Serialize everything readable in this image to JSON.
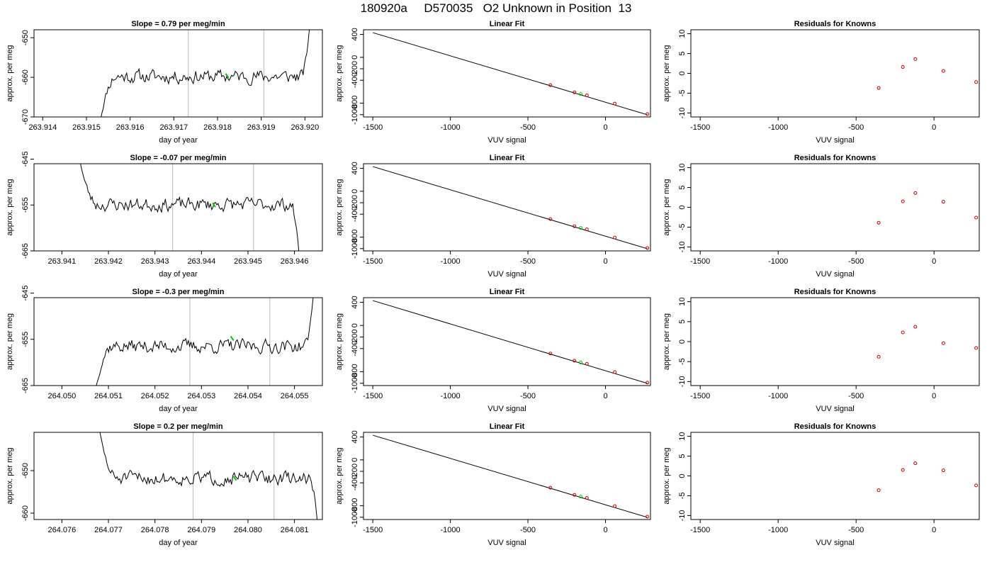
{
  "page": {
    "title": "180920a     D570035   O2 Unknown in Position  13"
  },
  "colors": {
    "axis": "#000000",
    "line": "#000000",
    "marker_unknown": "#00cc00",
    "marker_known": "#cc0000",
    "vline": "#bbbbbb"
  },
  "chart_data": [
    {
      "id": "r1-time",
      "type": "line",
      "title": "Slope =  0.79  per meg/min",
      "xlabel": "day of year",
      "ylabel": "approx. per meg",
      "xlim": [
        263.9138,
        263.9204
      ],
      "ylim": [
        -670,
        -648
      ],
      "xticks": [
        "263.914",
        "263.915",
        "263.916",
        "263.917",
        "263.918",
        "263.919",
        "263.920"
      ],
      "yticks": [
        "-650",
        "-660",
        "-670"
      ],
      "vlines": [
        263.91733,
        263.91906
      ],
      "trace_start": 263.9153,
      "trace_end": 263.9201,
      "level": -659.8,
      "start_value": -672,
      "end_value": -648,
      "seed": 11,
      "unknown_marker": {
        "x": 263.91822,
        "y": -659.6
      }
    },
    {
      "id": "r1-fit",
      "type": "line",
      "title": "Linear Fit",
      "xlabel": "VUV signal",
      "ylabel": "approx. per meg",
      "xlim": [
        -1560,
        290
      ],
      "ylim": [
        -1040,
        480
      ],
      "xticks": [
        "-1500",
        "-1000",
        "-500",
        "0"
      ],
      "yticks": [
        "-1000",
        "-800",
        "-400",
        "-200",
        "0",
        "400"
      ],
      "fit_line": {
        "x": [
          -1500,
          270
        ],
        "y": [
          430,
          -1002
        ]
      },
      "knowns": {
        "x": [
          -355,
          -200,
          -120,
          60,
          270
        ],
        "y": [
          -485,
          -610,
          -665,
          -807,
          -990
        ]
      },
      "unknown": {
        "x": [
          -160
        ],
        "y": [
          -640
        ]
      }
    },
    {
      "id": "r1-resid",
      "type": "scatter",
      "title": "Residuals for Knowns",
      "xlabel": "VUV signal",
      "ylabel": "approx. per meg",
      "xlim": [
        -1560,
        290
      ],
      "ylim": [
        -11,
        11
      ],
      "xticks": [
        "-1500",
        "-1000",
        "-500",
        "0"
      ],
      "yticks": [
        "-10",
        "-5",
        "0",
        "5",
        "10"
      ],
      "x": [
        -355,
        -200,
        -120,
        60,
        270
      ],
      "y": [
        -3.7,
        1.6,
        3.6,
        0.6,
        -2.2
      ]
    },
    {
      "id": "r2-time",
      "type": "line",
      "title": "Slope =  -0.07  per meg/min",
      "xlabel": "day of year",
      "ylabel": "approx. per meg",
      "xlim": [
        263.9404,
        263.9466
      ],
      "ylim": [
        -665,
        -646
      ],
      "xticks": [
        "263.941",
        "263.942",
        "263.943",
        "263.944",
        "263.945",
        "263.946"
      ],
      "yticks": [
        "-645",
        "-655",
        "-665"
      ],
      "vlines": [
        263.94338,
        263.94512
      ],
      "trace_start": 263.9414,
      "trace_end": 263.9461,
      "level": -654.9,
      "start_value": -646,
      "end_value": -666,
      "seed": 23,
      "unknown_marker": {
        "x": 263.94427,
        "y": -655.0
      }
    },
    {
      "id": "r2-fit",
      "type": "line",
      "title": "Linear Fit",
      "xlabel": "VUV signal",
      "ylabel": "approx. per meg",
      "xlim": [
        -1560,
        290
      ],
      "ylim": [
        -1040,
        480
      ],
      "xticks": [
        "-1500",
        "-1000",
        "-500",
        "0"
      ],
      "yticks": [
        "-1000",
        "-800",
        "-400",
        "-200",
        "0",
        "400"
      ],
      "fit_line": {
        "x": [
          -1500,
          270
        ],
        "y": [
          430,
          -1002
        ]
      },
      "knowns": {
        "x": [
          -355,
          -200,
          -120,
          60,
          270
        ],
        "y": [
          -485,
          -610,
          -665,
          -807,
          -990
        ]
      },
      "unknown": {
        "x": [
          -160
        ],
        "y": [
          -640
        ]
      }
    },
    {
      "id": "r2-resid",
      "type": "scatter",
      "title": "Residuals for Knowns",
      "xlabel": "VUV signal",
      "ylabel": "approx. per meg",
      "xlim": [
        -1560,
        290
      ],
      "ylim": [
        -11,
        11
      ],
      "xticks": [
        "-1500",
        "-1000",
        "-500",
        "0"
      ],
      "yticks": [
        "-10",
        "-5",
        "0",
        "5",
        "10"
      ],
      "x": [
        -355,
        -200,
        -120,
        60,
        270
      ],
      "y": [
        -3.9,
        1.5,
        3.6,
        1.4,
        -2.6
      ]
    },
    {
      "id": "r3-time",
      "type": "line",
      "title": "Slope =  -0.3  per meg/min",
      "xlabel": "day of year",
      "ylabel": "approx. per meg",
      "xlim": [
        264.0494,
        264.0556
      ],
      "ylim": [
        -665,
        -646
      ],
      "xticks": [
        "264.050",
        "264.051",
        "264.052",
        "264.053",
        "264.054",
        "264.055"
      ],
      "yticks": [
        "-645",
        "-655",
        "-665"
      ],
      "vlines": [
        264.05275,
        264.05447
      ],
      "trace_start": 264.0507,
      "trace_end": 264.0554,
      "level": -656.5,
      "start_value": -667,
      "end_value": -646,
      "seed": 37,
      "unknown_marker": {
        "x": 264.05366,
        "y": -654.8
      }
    },
    {
      "id": "r3-fit",
      "type": "line",
      "title": "Linear Fit",
      "xlabel": "VUV signal",
      "ylabel": "approx. per meg",
      "xlim": [
        -1560,
        290
      ],
      "ylim": [
        -1040,
        480
      ],
      "xticks": [
        "-1500",
        "-1000",
        "-500",
        "0"
      ],
      "yticks": [
        "-1000",
        "-800",
        "-400",
        "-200",
        "0",
        "400"
      ],
      "fit_line": {
        "x": [
          -1500,
          270
        ],
        "y": [
          430,
          -1002
        ]
      },
      "knowns": {
        "x": [
          -355,
          -200,
          -120,
          60,
          270
        ],
        "y": [
          -485,
          -610,
          -665,
          -807,
          -990
        ]
      },
      "unknown": {
        "x": [
          -160
        ],
        "y": [
          -640
        ]
      }
    },
    {
      "id": "r3-resid",
      "type": "scatter",
      "title": "Residuals for Knowns",
      "xlabel": "VUV signal",
      "ylabel": "approx. per meg",
      "xlim": [
        -1560,
        290
      ],
      "ylim": [
        -11,
        11
      ],
      "xticks": [
        "-1500",
        "-1000",
        "-500",
        "0"
      ],
      "yticks": [
        "-10",
        "-5",
        "0",
        "5",
        "10"
      ],
      "x": [
        -355,
        -200,
        -120,
        60,
        270
      ],
      "y": [
        -3.8,
        2.3,
        3.7,
        -0.4,
        -1.6
      ]
    },
    {
      "id": "r4-time",
      "type": "line",
      "title": "Slope =  0.2  per meg/min",
      "xlabel": "day of year",
      "ylabel": "approx. per meg",
      "xlim": [
        264.0754,
        264.0816
      ],
      "ylim": [
        -661.5,
        -641
      ],
      "xticks": [
        "264.076",
        "264.077",
        "264.078",
        "264.079",
        "264.080",
        "264.081"
      ],
      "yticks": [
        "-650",
        "-660"
      ],
      "vlines": [
        264.07882,
        264.08056
      ],
      "trace_start": 264.0768,
      "trace_end": 264.0815,
      "level": -651.8,
      "start_value": -640,
      "end_value": -663,
      "seed": 51,
      "unknown_marker": {
        "x": 264.07972,
        "y": -651.8
      }
    },
    {
      "id": "r4-fit",
      "type": "line",
      "title": "Linear Fit",
      "xlabel": "VUV signal",
      "ylabel": "approx. per meg",
      "xlim": [
        -1560,
        290
      ],
      "ylim": [
        -1040,
        480
      ],
      "xticks": [
        "-1500",
        "-1000",
        "-500",
        "0"
      ],
      "yticks": [
        "-1000",
        "-800",
        "-400",
        "-200",
        "0",
        "400"
      ],
      "fit_line": {
        "x": [
          -1500,
          270
        ],
        "y": [
          430,
          -1002
        ]
      },
      "knowns": {
        "x": [
          -355,
          -200,
          -120,
          60,
          270
        ],
        "y": [
          -485,
          -610,
          -665,
          -807,
          -990
        ]
      },
      "unknown": {
        "x": [
          -160
        ],
        "y": [
          -640
        ]
      }
    },
    {
      "id": "r4-resid",
      "type": "scatter",
      "title": "Residuals for Knowns",
      "xlabel": "VUV signal",
      "ylabel": "approx. per meg",
      "xlim": [
        -1560,
        290
      ],
      "ylim": [
        -11,
        11
      ],
      "xticks": [
        "-1500",
        "-1000",
        "-500",
        "0"
      ],
      "yticks": [
        "-10",
        "-5",
        "0",
        "5",
        "10"
      ],
      "x": [
        -355,
        -200,
        -120,
        60,
        270
      ],
      "y": [
        -3.6,
        1.5,
        3.2,
        1.4,
        -2.4
      ]
    }
  ]
}
